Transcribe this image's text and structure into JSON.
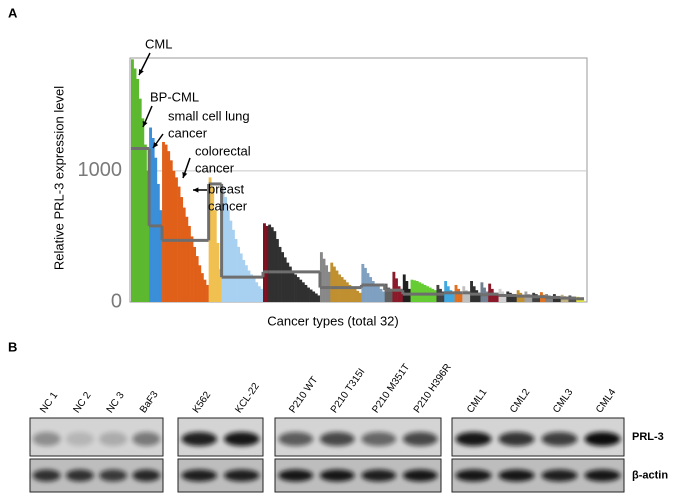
{
  "panel_labels": [
    "A",
    "B"
  ],
  "chart_data": {
    "type": "distribution",
    "y_label": "Relative PRL-3 expression level",
    "x_label": "Cancer types (total 32)",
    "ylim": [
      0,
      1860
    ],
    "yticks": [
      0,
      1000
    ],
    "grid": true,
    "annotations": [
      [
        "CML"
      ],
      [
        "BP-CML"
      ],
      [
        "small cell lung",
        "cancer"
      ],
      [
        "colorectal",
        "cancer"
      ],
      [
        "breast",
        "cancer"
      ]
    ],
    "median_color": "#6e6e6e",
    "groups": [
      {
        "color": "#5cb82e",
        "values": [
          1850,
          1780,
          1700,
          1550,
          1400,
          1200,
          1000
        ],
        "median": 1170
      },
      {
        "color": "#3a8fd8",
        "values": [
          1330,
          1250,
          1100,
          900,
          700
        ],
        "median": 580
      },
      {
        "color": "#e0601a",
        "values": [
          1220,
          1200,
          1150,
          1080,
          1000,
          950,
          880,
          800,
          720,
          650,
          580,
          500,
          420,
          350,
          280,
          220,
          170,
          130
        ],
        "median": 470
      },
      {
        "color": "#f0c050",
        "values": [
          950,
          880,
          700,
          450,
          250
        ],
        "median": 900
      },
      {
        "color": "#a8d0f0",
        "values": [
          880,
          800,
          700,
          620,
          550,
          480,
          420,
          370,
          320,
          280,
          240,
          210,
          180,
          150,
          120,
          100
        ],
        "median": 190
      },
      {
        "color": "#7a1020",
        "values": [
          600,
          580
        ],
        "median": 230
      },
      {
        "color": "#303030",
        "values": [
          590,
          570,
          540,
          480,
          420,
          380,
          340,
          300,
          270,
          240,
          210,
          190,
          170,
          150,
          130,
          110,
          95,
          80,
          65,
          50
        ],
        "median": 230
      },
      {
        "color": "#888888",
        "values": [
          380,
          330,
          280,
          230
        ],
        "median": 110
      },
      {
        "color": "#c09030",
        "values": [
          300,
          270,
          240,
          210,
          190,
          170,
          150,
          130,
          115,
          100,
          85,
          70
        ],
        "median": 110
      },
      {
        "color": "#7fa0c0",
        "values": [
          290,
          260,
          220,
          190,
          160,
          140,
          120,
          100,
          80
        ],
        "median": 130
      },
      {
        "color": "#606060",
        "values": [
          140,
          110,
          90
        ],
        "median": 90
      },
      {
        "color": "#8a1a2a",
        "values": [
          230,
          180,
          120,
          80
        ],
        "median": 90
      },
      {
        "color": "#202020",
        "values": [
          210,
          160,
          100
        ],
        "median": 60
      },
      {
        "color": "#66cc33",
        "values": [
          170,
          165,
          160,
          150,
          140,
          130,
          120,
          110,
          100,
          90
        ],
        "median": 60
      },
      {
        "color": "#404040",
        "values": [
          130,
          100,
          80
        ],
        "median": 60
      },
      {
        "color": "#40a8e0",
        "values": [
          160,
          120,
          90,
          60
        ],
        "median": 70
      },
      {
        "color": "#e07020",
        "values": [
          130,
          100,
          70
        ],
        "median": 70
      },
      {
        "color": "#c0c0c0",
        "values": [
          120,
          90,
          60
        ],
        "median": 70
      },
      {
        "color": "#303030",
        "values": [
          160,
          120,
          90,
          70
        ],
        "median": 60
      },
      {
        "color": "#708090",
        "values": [
          150,
          110,
          80
        ],
        "median": 55
      },
      {
        "color": "#8a1a2a",
        "values": [
          140,
          100,
          70,
          50
        ],
        "median": 60
      },
      {
        "color": "#d0d0d0",
        "values": [
          100,
          80,
          60
        ],
        "median": 50
      },
      {
        "color": "#303030",
        "values": [
          80,
          70,
          60,
          50
        ],
        "median": 50
      },
      {
        "color": "#c09030",
        "values": [
          90,
          70,
          50
        ],
        "median": 45
      },
      {
        "color": "#a0a0a0",
        "values": [
          80,
          60,
          50
        ],
        "median": 45
      },
      {
        "color": "#404040",
        "values": [
          70,
          60,
          50
        ],
        "median": 40
      },
      {
        "color": "#e07020",
        "values": [
          75,
          55
        ],
        "median": 40
      },
      {
        "color": "#808080",
        "values": [
          60,
          50,
          40
        ],
        "median": 35
      },
      {
        "color": "#303030",
        "values": [
          60,
          45,
          35
        ],
        "median": 35
      },
      {
        "color": "#c0b080",
        "values": [
          55,
          45,
          35
        ],
        "median": 30
      },
      {
        "color": "#505050",
        "values": [
          50,
          40,
          30
        ],
        "median": 30
      },
      {
        "color": "#e0e040",
        "values": [
          40,
          30,
          20
        ],
        "median": 25
      }
    ]
  },
  "blot": {
    "lane_groups": [
      [
        "NC 1",
        "NC 2",
        "NC 3",
        "BaF3"
      ],
      [
        "K562",
        "KCL-22"
      ],
      [
        "P210 WT",
        "P210 T315I",
        "P210 M351T",
        "P210 H396R"
      ],
      [
        "CML1",
        "CML2",
        "CML3",
        "CML4"
      ]
    ],
    "rows": [
      "PRL-3",
      "β-actin"
    ]
  }
}
